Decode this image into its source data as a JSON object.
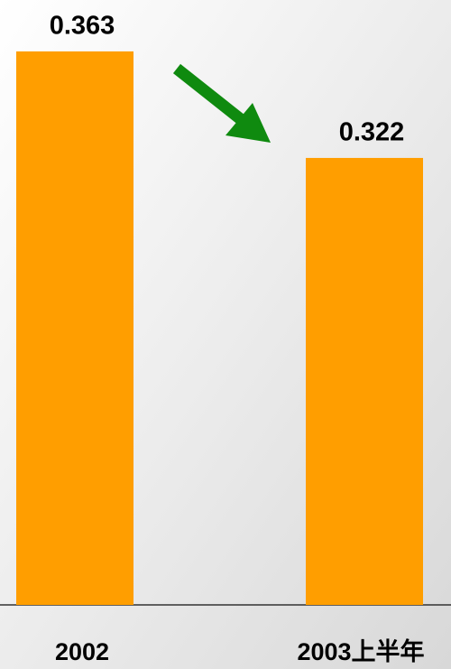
{
  "chart_data": {
    "type": "bar",
    "categories": [
      "2002",
      "2003上半年"
    ],
    "values": [
      0.363,
      0.322
    ],
    "color": "#ff9e00",
    "ylim": [
      0.15,
      0.38
    ]
  }
}
